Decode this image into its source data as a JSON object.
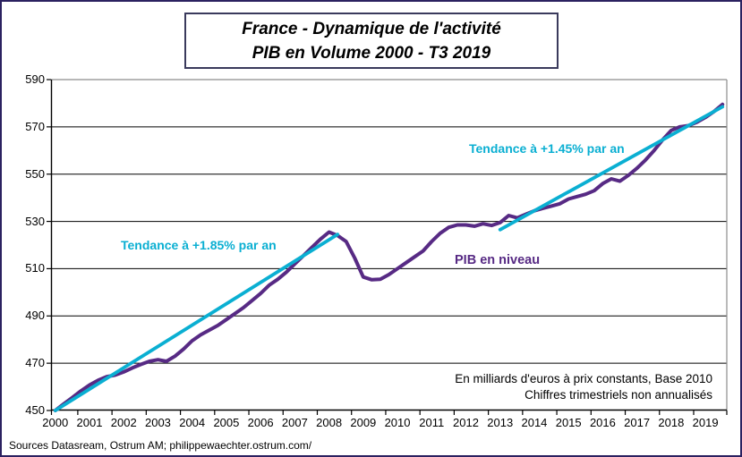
{
  "page": {
    "title_line1": "France - Dynamique de l'activité",
    "title_line2": "PIB en Volume 2000 - T3 2019",
    "source": "Sources Datasream, Ostrum AM; philippewaechter.ostrum.com/"
  },
  "annotations": {
    "trend1_label": "Tendance à +1.85% par an",
    "trend2_label": "Tendance à +1.45% par an",
    "series_label": "PIB en niveau",
    "note_line1": "En milliards d'euros à prix constants, Base 2010",
    "note_line2": "Chiffres trimestriels non annualisés"
  },
  "colors": {
    "pib_purple": "#572A84",
    "trend_cyan": "#0AAFD2",
    "grid": "#000000",
    "plot_border_gray": "#8C8C8C",
    "axis": "#000000",
    "outer_border": "#2B2160",
    "title_border": "#3A3A5C"
  },
  "chart_data": {
    "type": "line",
    "title": "France - Dynamique de l'activité / PIB en Volume 2000 - T3 2019",
    "frequency": "quarterly",
    "x_start": "2000Q1",
    "x_end": "2019Q3",
    "year_labels": [
      "2000",
      "2001",
      "2002",
      "2003",
      "2004",
      "2005",
      "2006",
      "2007",
      "2008",
      "2009",
      "2010",
      "2011",
      "2012",
      "2013",
      "2014",
      "2015",
      "2016",
      "2017",
      "2018",
      "2019"
    ],
    "ylabel": "",
    "xlabel": "",
    "ylim": [
      450,
      590
    ],
    "ytick_step": 20,
    "grid": "horizontal-only",
    "legend_position": "none (in-chart text labels)",
    "series": [
      {
        "name": "PIB en niveau",
        "color": "#572A84",
        "values": [
          450.0,
          452.8,
          455.5,
          458.3,
          460.8,
          462.8,
          464.3,
          465.0,
          466.3,
          468.0,
          469.5,
          470.8,
          471.5,
          470.8,
          473.0,
          476.0,
          479.5,
          482.0,
          484.0,
          486.0,
          488.5,
          491.0,
          493.5,
          496.5,
          499.5,
          503.0,
          505.5,
          508.5,
          512.0,
          515.5,
          519.0,
          522.5,
          525.5,
          524.0,
          521.5,
          514.5,
          506.5,
          505.3,
          505.5,
          507.5,
          510.0,
          512.5,
          515.0,
          517.5,
          521.5,
          525.0,
          527.5,
          528.5,
          528.5,
          528.0,
          529.0,
          528.3,
          529.5,
          532.5,
          531.5,
          533.0,
          534.5,
          535.5,
          536.5,
          537.5,
          539.5,
          540.5,
          541.5,
          543.0,
          546.0,
          548.0,
          547.0,
          549.5,
          552.5,
          556.0,
          560.0,
          564.5,
          568.5,
          570.0,
          570.5,
          572.0,
          574.0,
          576.5,
          579.5
        ]
      }
    ],
    "trend_lines": [
      {
        "name": "Tendance à +1.85% par an",
        "rate_per_year": "+1.85%",
        "color": "#0AAFD2",
        "from": {
          "quarter": "2000Q1",
          "index": 0,
          "value": 450.0
        },
        "to": {
          "quarter": "2008Q2",
          "index": 33,
          "value": 524.5
        }
      },
      {
        "name": "Tendance à +1.45% par an",
        "rate_per_year": "+1.45%",
        "color": "#0AAFD2",
        "from": {
          "quarter": "2013Q1",
          "index": 52,
          "value": 526.5
        },
        "to": {
          "quarter": "2019Q3",
          "index": 78,
          "value": 578.5
        }
      }
    ]
  }
}
